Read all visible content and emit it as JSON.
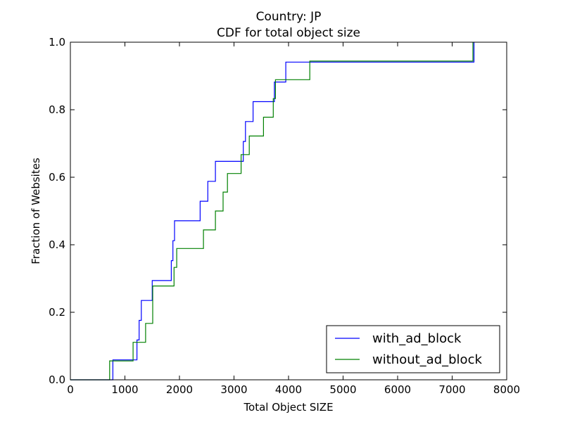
{
  "chart_data": {
    "type": "line",
    "title": "Country: JP",
    "subtitle": "CDF for total object size",
    "xlabel": "Total Object SIZE",
    "ylabel": "Fraction of Websites",
    "xlim": [
      0,
      8000
    ],
    "ylim": [
      0,
      1.0
    ],
    "xticks": [
      "0",
      "1000",
      "2000",
      "3000",
      "4000",
      "5000",
      "6000",
      "7000",
      "8000"
    ],
    "yticks": [
      "0.0",
      "0.2",
      "0.4",
      "0.6",
      "0.8",
      "1.0"
    ],
    "grid": false,
    "legend_position": "bottom-right",
    "step": true,
    "series": [
      {
        "name": "with_ad_block",
        "color": "#0000ff",
        "points": [
          [
            0,
            0.0
          ],
          [
            780,
            0.0
          ],
          [
            780,
            0.059
          ],
          [
            1220,
            0.059
          ],
          [
            1220,
            0.118
          ],
          [
            1260,
            0.118
          ],
          [
            1260,
            0.176
          ],
          [
            1300,
            0.176
          ],
          [
            1300,
            0.235
          ],
          [
            1500,
            0.235
          ],
          [
            1500,
            0.294
          ],
          [
            1850,
            0.294
          ],
          [
            1850,
            0.353
          ],
          [
            1880,
            0.353
          ],
          [
            1880,
            0.412
          ],
          [
            1910,
            0.412
          ],
          [
            1910,
            0.471
          ],
          [
            2380,
            0.471
          ],
          [
            2380,
            0.529
          ],
          [
            2520,
            0.529
          ],
          [
            2520,
            0.588
          ],
          [
            2660,
            0.588
          ],
          [
            2660,
            0.647
          ],
          [
            3170,
            0.647
          ],
          [
            3170,
            0.706
          ],
          [
            3210,
            0.706
          ],
          [
            3210,
            0.765
          ],
          [
            3350,
            0.765
          ],
          [
            3350,
            0.824
          ],
          [
            3740,
            0.824
          ],
          [
            3740,
            0.882
          ],
          [
            3950,
            0.882
          ],
          [
            3950,
            0.941
          ],
          [
            7400,
            0.941
          ],
          [
            7400,
            1.0
          ]
        ]
      },
      {
        "name": "without_ad_block",
        "color": "#008000",
        "points": [
          [
            0,
            0.0
          ],
          [
            720,
            0.0
          ],
          [
            720,
            0.056
          ],
          [
            1150,
            0.056
          ],
          [
            1150,
            0.111
          ],
          [
            1380,
            0.111
          ],
          [
            1380,
            0.167
          ],
          [
            1510,
            0.167
          ],
          [
            1510,
            0.278
          ],
          [
            1900,
            0.278
          ],
          [
            1900,
            0.333
          ],
          [
            1950,
            0.333
          ],
          [
            1950,
            0.389
          ],
          [
            2440,
            0.389
          ],
          [
            2440,
            0.444
          ],
          [
            2660,
            0.444
          ],
          [
            2660,
            0.5
          ],
          [
            2800,
            0.5
          ],
          [
            2800,
            0.556
          ],
          [
            2880,
            0.556
          ],
          [
            2880,
            0.611
          ],
          [
            3130,
            0.611
          ],
          [
            3130,
            0.667
          ],
          [
            3280,
            0.667
          ],
          [
            3280,
            0.722
          ],
          [
            3540,
            0.722
          ],
          [
            3540,
            0.778
          ],
          [
            3720,
            0.778
          ],
          [
            3720,
            0.833
          ],
          [
            3760,
            0.833
          ],
          [
            3760,
            0.889
          ],
          [
            4390,
            0.889
          ],
          [
            4390,
            0.944
          ],
          [
            7380,
            0.944
          ],
          [
            7380,
            1.0
          ]
        ]
      }
    ]
  }
}
